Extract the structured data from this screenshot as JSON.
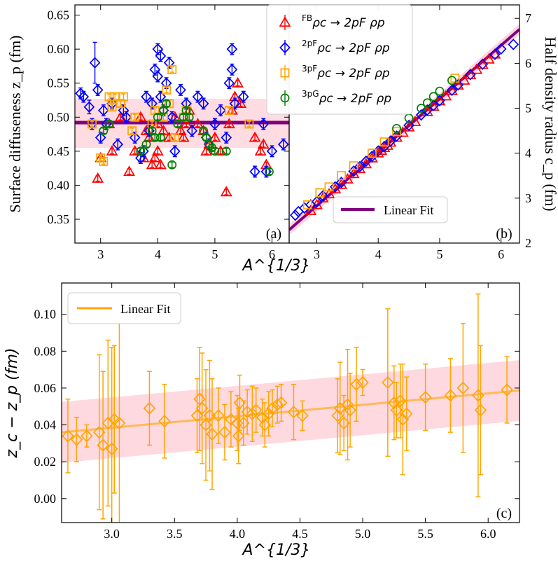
{
  "chart_data": [
    {
      "id": "a",
      "type": "scatter",
      "panel_label": "(a)",
      "ylabel": "Surface diffuseness z_p (fm)",
      "xlabel": "A^{1/3}",
      "xlim": [
        2.55,
        6.3
      ],
      "ylim": [
        0.315,
        0.665
      ],
      "xticks": [
        3,
        4,
        5,
        6
      ],
      "yticks": [
        0.35,
        0.4,
        0.45,
        0.5,
        0.55,
        0.6,
        0.65
      ],
      "ytick_labels": [
        "0.35",
        "0.40",
        "0.45",
        "0.50",
        "0.55",
        "0.60",
        "0.65"
      ],
      "fit": {
        "label": "Linear Fit",
        "value": 0.492,
        "band": [
          0.455,
          0.527
        ],
        "color": "#800080",
        "band_color": "#ffc0cb"
      },
      "series": [
        {
          "name": "FB ρc → 2pF ρp",
          "marker": "triangle",
          "color": "#ff0000",
          "x": [
            2.95,
            3.0,
            3.15,
            3.2,
            3.35,
            3.5,
            3.6,
            3.7,
            3.75,
            3.8,
            3.85,
            3.9,
            3.95,
            4.0,
            4.0,
            4.05,
            4.1,
            4.2,
            4.3,
            4.4,
            4.45,
            4.5,
            4.55,
            4.7,
            4.8,
            4.85,
            4.9,
            5.0,
            5.1,
            5.2,
            5.25,
            5.3,
            5.35,
            5.4,
            5.45,
            5.7,
            5.8,
            5.85,
            5.9
          ],
          "y": [
            0.41,
            0.44,
            0.49,
            0.45,
            0.5,
            0.42,
            0.45,
            0.5,
            0.44,
            0.48,
            0.47,
            0.43,
            0.44,
            0.45,
            0.49,
            0.43,
            0.48,
            0.47,
            0.5,
            0.48,
            0.47,
            0.49,
            0.51,
            0.49,
            0.48,
            0.45,
            0.46,
            0.47,
            0.45,
            0.39,
            0.49,
            0.51,
            0.53,
            0.55,
            0.52,
            0.47,
            0.45,
            0.46,
            0.43
          ],
          "err": [
            0.004,
            0.004,
            0.004,
            0.004,
            0.004,
            0.004,
            0.004,
            0.004,
            0.004,
            0.004,
            0.004,
            0.004,
            0.004,
            0.004,
            0.004,
            0.004,
            0.004,
            0.004,
            0.004,
            0.004,
            0.004,
            0.004,
            0.004,
            0.004,
            0.004,
            0.004,
            0.004,
            0.004,
            0.004,
            0.004,
            0.004,
            0.004,
            0.004,
            0.004,
            0.004,
            0.004,
            0.004,
            0.004,
            0.004
          ]
        },
        {
          "name": "2pF ρc → 2pF ρp",
          "marker": "diamond",
          "color": "#0000ff",
          "x": [
            2.65,
            2.7,
            2.8,
            2.85,
            2.9,
            2.95,
            3.0,
            3.05,
            3.1,
            3.2,
            3.3,
            3.4,
            3.45,
            3.6,
            3.7,
            3.75,
            3.8,
            3.85,
            3.9,
            3.95,
            4.0,
            4.0,
            4.05,
            4.05,
            4.1,
            4.15,
            4.2,
            4.25,
            4.3,
            4.4,
            4.5,
            4.6,
            4.7,
            4.8,
            4.85,
            4.9,
            5.0,
            5.1,
            5.2,
            5.25,
            5.3,
            5.3,
            5.35,
            5.5,
            5.7,
            5.85,
            5.9,
            6.0,
            6.2
          ],
          "y": [
            0.535,
            0.53,
            0.515,
            0.49,
            0.58,
            0.54,
            0.47,
            0.51,
            0.49,
            0.52,
            0.46,
            0.51,
            0.5,
            0.47,
            0.44,
            0.45,
            0.53,
            0.48,
            0.52,
            0.57,
            0.56,
            0.6,
            0.59,
            0.53,
            0.51,
            0.55,
            0.58,
            0.5,
            0.45,
            0.54,
            0.52,
            0.48,
            0.53,
            0.52,
            0.47,
            0.46,
            0.49,
            0.51,
            0.47,
            0.55,
            0.6,
            0.57,
            0.52,
            0.53,
            0.42,
            0.49,
            0.42,
            0.45,
            0.46
          ],
          "err": [
            0.008,
            0.008,
            0.01,
            0.008,
            0.03,
            0.008,
            0.008,
            0.008,
            0.008,
            0.008,
            0.008,
            0.008,
            0.008,
            0.008,
            0.008,
            0.008,
            0.008,
            0.008,
            0.008,
            0.008,
            0.008,
            0.008,
            0.008,
            0.008,
            0.008,
            0.008,
            0.008,
            0.008,
            0.008,
            0.008,
            0.008,
            0.008,
            0.008,
            0.008,
            0.008,
            0.008,
            0.008,
            0.008,
            0.008,
            0.008,
            0.008,
            0.008,
            0.008,
            0.008,
            0.008,
            0.008,
            0.008,
            0.008,
            0.008
          ]
        },
        {
          "name": "3pF ρc → 2pF ρp",
          "marker": "square",
          "color": "#ffa500",
          "x": [
            2.85,
            3.0,
            3.05,
            3.15,
            3.2,
            3.25,
            3.35,
            3.4,
            3.55,
            3.6,
            3.9,
            3.95,
            4.1,
            4.15,
            4.2,
            4.25,
            4.3,
            4.45,
            4.5,
            5.25,
            5.6
          ],
          "y": [
            0.49,
            0.44,
            0.435,
            0.53,
            0.515,
            0.53,
            0.52,
            0.53,
            0.48,
            0.5,
            0.49,
            0.51,
            0.5,
            0.54,
            0.52,
            0.57,
            0.47,
            0.5,
            0.51,
            0.51,
            0.49
          ],
          "err": [
            0.004,
            0.004,
            0.004,
            0.004,
            0.004,
            0.004,
            0.004,
            0.004,
            0.004,
            0.004,
            0.004,
            0.004,
            0.004,
            0.004,
            0.004,
            0.004,
            0.004,
            0.004,
            0.004,
            0.004,
            0.004
          ]
        },
        {
          "name": "3pG ρc → 2pF ρp",
          "marker": "circle",
          "color": "#008000",
          "x": [
            3.05,
            3.15,
            3.7,
            3.8,
            3.9,
            3.95,
            4.0,
            4.05,
            4.1,
            4.15,
            4.25,
            4.35,
            4.45,
            4.5,
            4.55,
            4.8,
            4.85,
            4.9,
            4.95,
            5.0,
            5.2,
            5.95
          ],
          "y": [
            0.48,
            0.49,
            0.45,
            0.46,
            0.48,
            0.47,
            0.5,
            0.47,
            0.51,
            0.52,
            0.43,
            0.49,
            0.5,
            0.51,
            0.5,
            0.48,
            0.47,
            0.46,
            0.455,
            0.45,
            0.45,
            0.42
          ],
          "err": [
            0.004,
            0.004,
            0.004,
            0.004,
            0.004,
            0.004,
            0.004,
            0.004,
            0.004,
            0.004,
            0.004,
            0.004,
            0.004,
            0.004,
            0.004,
            0.004,
            0.004,
            0.004,
            0.004,
            0.004,
            0.004,
            0.004
          ]
        }
      ]
    },
    {
      "id": "b",
      "type": "scatter",
      "panel_label": "(b)",
      "ylabel": "Half density radius c_p (fm)",
      "xlabel": "",
      "xlim": [
        2.55,
        6.3
      ],
      "ylim": [
        2.0,
        7.3
      ],
      "xticks": [
        3,
        4,
        5,
        6
      ],
      "yticks": [
        2,
        3,
        4,
        5,
        6,
        7
      ],
      "fit": {
        "label": "Linear Fit",
        "slope": 1.19,
        "intercept": -0.74,
        "color": "#800080",
        "band_color": "#ffc0cb"
      },
      "series": [
        {
          "name": "FB ρc → 2pF ρp",
          "color": "#ff0000",
          "x": [
            2.9,
            3.0,
            3.1,
            3.2,
            3.3,
            3.4,
            3.5,
            3.6,
            3.7,
            3.8,
            3.9,
            4.0,
            4.05,
            4.1,
            4.15,
            4.2,
            4.3,
            4.4,
            4.5,
            4.6,
            4.8,
            4.9,
            5.0,
            5.1,
            5.2,
            5.3,
            5.4,
            5.5,
            5.6,
            5.7,
            5.8,
            5.9
          ],
          "y": [
            2.72,
            2.85,
            3.0,
            3.09,
            3.2,
            3.3,
            3.42,
            3.54,
            3.65,
            3.76,
            3.89,
            4.0,
            4.06,
            4.12,
            4.17,
            4.24,
            4.35,
            4.46,
            4.58,
            4.7,
            4.92,
            5.04,
            5.16,
            5.27,
            5.39,
            5.51,
            5.62,
            5.74,
            5.86,
            5.97,
            6.09,
            6.2
          ]
        },
        {
          "name": "2pF ρc → 2pF ρp",
          "color": "#0000ff",
          "x": [
            2.65,
            2.7,
            2.8,
            2.9,
            3.0,
            3.1,
            3.3,
            3.4,
            3.6,
            3.7,
            3.8,
            3.9,
            4.0,
            4.1,
            4.2,
            4.3,
            4.5,
            4.7,
            4.8,
            4.9,
            5.0,
            5.2,
            5.3,
            5.5,
            5.7,
            5.9,
            6.0,
            6.2
          ],
          "y": [
            2.62,
            2.7,
            2.78,
            2.85,
            2.92,
            3.05,
            3.25,
            3.35,
            3.6,
            3.7,
            3.82,
            3.93,
            4.05,
            4.15,
            4.27,
            4.38,
            4.62,
            4.85,
            4.96,
            5.06,
            5.17,
            5.4,
            5.52,
            5.75,
            5.98,
            6.2,
            6.32,
            6.42
          ]
        },
        {
          "name": "3pF ρc → 2pF ρp",
          "color": "#ffa500",
          "x": [
            2.85,
            3.05,
            3.2,
            3.4,
            3.6,
            3.9,
            4.1,
            4.3,
            5.25
          ],
          "y": [
            2.85,
            3.12,
            3.25,
            3.5,
            3.72,
            4.0,
            4.25,
            4.48,
            5.67
          ]
        },
        {
          "name": "3pG ρc → 2pF ρp",
          "color": "#008000",
          "x": [
            4.3,
            4.5,
            4.7,
            4.8,
            4.9,
            5.0,
            5.2
          ],
          "y": [
            4.55,
            4.78,
            5.0,
            5.12,
            5.26,
            5.38,
            5.62
          ]
        }
      ]
    },
    {
      "id": "c",
      "type": "scatter",
      "panel_label": "(c)",
      "ylabel": "z_c − z_p (fm)",
      "xlabel": "A^{1/3}",
      "xlim": [
        2.6,
        6.25
      ],
      "ylim": [
        -0.013,
        0.117
      ],
      "xticks": [
        3.0,
        3.5,
        4.0,
        4.5,
        5.0,
        5.5,
        6.0
      ],
      "xtick_labels": [
        "3.0",
        "3.5",
        "4.0",
        "4.5",
        "5.0",
        "5.5",
        "6.0"
      ],
      "yticks": [
        0.0,
        0.02,
        0.04,
        0.06,
        0.08,
        0.1
      ],
      "ytick_labels": [
        "0.00",
        "0.02",
        "0.04",
        "0.06",
        "0.08",
        "0.10"
      ],
      "fit": {
        "label": "Linear Fit",
        "slope": 0.00622,
        "intercept": 0.0198,
        "band_half_width": 0.0165,
        "color": "#ffa500",
        "band_color": "#ffc0cb"
      },
      "series": [
        {
          "name": "z_c − z_p",
          "marker": "diamond",
          "color": "#ffa500",
          "x": [
            2.65,
            2.72,
            2.8,
            2.9,
            2.93,
            2.97,
            3.0,
            3.02,
            3.06,
            3.3,
            3.42,
            3.68,
            3.7,
            3.72,
            3.75,
            3.78,
            3.8,
            3.85,
            3.9,
            3.95,
            4.0,
            4.01,
            4.02,
            4.05,
            4.08,
            4.12,
            4.15,
            4.2,
            4.22,
            4.25,
            4.28,
            4.32,
            4.35,
            4.45,
            4.52,
            4.8,
            4.82,
            4.85,
            4.88,
            4.9,
            4.95,
            5.0,
            5.2,
            5.25,
            5.27,
            5.3,
            5.32,
            5.35,
            5.5,
            5.7,
            5.8,
            5.92,
            5.94,
            6.15
          ],
          "y": [
            0.034,
            0.032,
            0.034,
            0.036,
            0.029,
            0.041,
            0.027,
            0.043,
            0.041,
            0.049,
            0.042,
            0.045,
            0.054,
            0.049,
            0.04,
            0.045,
            0.035,
            0.045,
            0.036,
            0.043,
            0.041,
            0.034,
            0.052,
            0.041,
            0.047,
            0.046,
            0.048,
            0.044,
            0.04,
            0.046,
            0.049,
            0.051,
            0.052,
            0.047,
            0.045,
            0.045,
            0.049,
            0.041,
            0.051,
            0.048,
            0.062,
            0.063,
            0.063,
            0.052,
            0.048,
            0.053,
            0.043,
            0.046,
            0.055,
            0.056,
            0.06,
            0.056,
            0.048,
            0.059
          ],
          "err": [
            0.02,
            0.012,
            0.006,
            0.042,
            0.04,
            0.045,
            0.055,
            0.04,
            0.055,
            0.02,
            0.02,
            0.02,
            0.028,
            0.03,
            0.03,
            0.03,
            0.03,
            0.015,
            0.015,
            0.015,
            0.015,
            0.015,
            0.015,
            0.012,
            0.012,
            0.015,
            0.012,
            0.01,
            0.012,
            0.012,
            0.01,
            0.01,
            0.01,
            0.015,
            0.008,
            0.02,
            0.025,
            0.015,
            0.03,
            0.02,
            0.02,
            0.007,
            0.04,
            0.02,
            0.015,
            0.02,
            0.03,
            0.02,
            0.018,
            0.02,
            0.035,
            0.055,
            0.035,
            0.018
          ]
        }
      ]
    }
  ],
  "legend_ab": {
    "entries": [
      {
        "sup": "FB",
        "label": "ρc → 2pF ρp"
      },
      {
        "sup": "2pF",
        "label": "ρc → 2pF ρp"
      },
      {
        "sup": "3pF",
        "label": "ρc → 2pF ρp"
      },
      {
        "sup": "3pG",
        "label": "ρc → 2pF ρp"
      }
    ]
  }
}
